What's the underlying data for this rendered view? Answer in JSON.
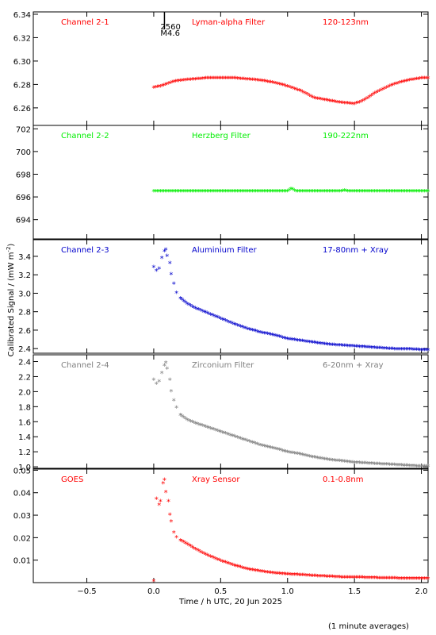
{
  "chart_data": {
    "type": "scatter",
    "ylabel_main": "Calibrated Signal / (mW m",
    "ylabel_sup": "-2",
    "ylabel_end": ")",
    "xlabel": "Time / h UTC, 20 Jun 2025",
    "footnote": "(1 minute averages)",
    "event_marker": {
      "x": 0.08,
      "label_top": "2560",
      "label_bottom": "M4.6"
    },
    "xlim": [
      -0.9,
      2.05
    ],
    "xticks": [
      -0.5,
      0.0,
      0.5,
      1.0,
      1.5,
      2.0
    ],
    "xticklabels": [
      "−0.5",
      "0.0",
      "0.5",
      "1.0",
      "1.5",
      "2.0"
    ],
    "panels": [
      {
        "channel": "Channel 2-1",
        "filter": "Lyman-alpha Filter",
        "band": "120-123nm",
        "color": "#ff0000",
        "ylim": [
          6.245,
          6.342
        ],
        "yticks": [
          6.26,
          6.28,
          6.3,
          6.32,
          6.34
        ],
        "yticklabels": [
          "6.26",
          "6.28",
          "6.30",
          "6.32",
          "6.34"
        ],
        "series": [
          [
            0.0,
            6.277
          ],
          [
            0.05,
            6.278
          ],
          [
            0.1,
            6.28
          ],
          [
            0.15,
            6.282
          ],
          [
            0.2,
            6.283
          ],
          [
            0.3,
            6.284
          ],
          [
            0.4,
            6.285
          ],
          [
            0.5,
            6.285
          ],
          [
            0.6,
            6.285
          ],
          [
            0.7,
            6.284
          ],
          [
            0.8,
            6.283
          ],
          [
            0.9,
            6.281
          ],
          [
            1.0,
            6.278
          ],
          [
            1.05,
            6.276
          ],
          [
            1.1,
            6.274
          ],
          [
            1.15,
            6.271
          ],
          [
            1.2,
            6.268
          ],
          [
            1.3,
            6.266
          ],
          [
            1.4,
            6.264
          ],
          [
            1.5,
            6.263
          ],
          [
            1.55,
            6.265
          ],
          [
            1.6,
            6.268
          ],
          [
            1.65,
            6.272
          ],
          [
            1.7,
            6.275
          ],
          [
            1.8,
            6.28
          ],
          [
            1.9,
            6.283
          ],
          [
            2.0,
            6.285
          ],
          [
            2.05,
            6.285
          ]
        ]
      },
      {
        "channel": "Channel 2-2",
        "filter": "Herzberg Filter",
        "band": "190-222nm",
        "color": "#00ee00",
        "ylim": [
          692.3,
          702.3
        ],
        "yticks": [
          694,
          696,
          698,
          700,
          702
        ],
        "yticklabels": [
          "694",
          "696",
          "698",
          "700",
          "702"
        ],
        "series": [
          [
            0.0,
            696.45
          ],
          [
            0.5,
            696.45
          ],
          [
            1.0,
            696.45
          ],
          [
            1.03,
            696.7
          ],
          [
            1.06,
            696.45
          ],
          [
            1.4,
            696.45
          ],
          [
            1.42,
            696.55
          ],
          [
            1.45,
            696.45
          ],
          [
            2.05,
            696.45
          ]
        ]
      },
      {
        "channel": "Channel 2-3",
        "filter": "Aluminium Filter",
        "band": "17-80nm + Xray",
        "color": "#0000cc",
        "ylim": [
          2.35,
          3.58
        ],
        "yticks": [
          2.4,
          2.6,
          2.8,
          3.0,
          3.2,
          3.4
        ],
        "yticklabels": [
          "2.4",
          "2.6",
          "2.8",
          "3.0",
          "3.2",
          "3.4"
        ],
        "series": [
          [
            0.0,
            3.28
          ],
          [
            0.02,
            3.24
          ],
          [
            0.04,
            3.26
          ],
          [
            0.06,
            3.38
          ],
          [
            0.08,
            3.45
          ],
          [
            0.09,
            3.47
          ],
          [
            0.1,
            3.4
          ],
          [
            0.12,
            3.32
          ],
          [
            0.13,
            3.2
          ],
          [
            0.15,
            3.1
          ],
          [
            0.17,
            3.0
          ],
          [
            0.2,
            2.94
          ],
          [
            0.25,
            2.88
          ],
          [
            0.3,
            2.84
          ],
          [
            0.4,
            2.78
          ],
          [
            0.5,
            2.72
          ],
          [
            0.6,
            2.66
          ],
          [
            0.7,
            2.61
          ],
          [
            0.8,
            2.57
          ],
          [
            0.9,
            2.54
          ],
          [
            1.0,
            2.5
          ],
          [
            1.1,
            2.48
          ],
          [
            1.2,
            2.46
          ],
          [
            1.3,
            2.44
          ],
          [
            1.4,
            2.43
          ],
          [
            1.5,
            2.42
          ],
          [
            1.6,
            2.41
          ],
          [
            1.7,
            2.4
          ],
          [
            1.8,
            2.39
          ],
          [
            1.9,
            2.39
          ],
          [
            2.0,
            2.38
          ],
          [
            2.05,
            2.38
          ]
        ]
      },
      {
        "channel": "Channel 2-4",
        "filter": "Zirconium Filter",
        "band": "6-20nm + Xray",
        "color": "#7f7f7f",
        "ylim": [
          0.98,
          2.49
        ],
        "yticks": [
          1.0,
          1.2,
          1.4,
          1.6,
          1.8,
          2.0,
          2.2,
          2.4
        ],
        "yticklabels": [
          "1.0",
          "1.2",
          "1.4",
          "1.6",
          "1.8",
          "2.0",
          "2.2",
          "2.4"
        ],
        "series": [
          [
            0.0,
            2.15
          ],
          [
            0.02,
            2.1
          ],
          [
            0.04,
            2.13
          ],
          [
            0.06,
            2.24
          ],
          [
            0.08,
            2.34
          ],
          [
            0.09,
            2.38
          ],
          [
            0.1,
            2.3
          ],
          [
            0.12,
            2.15
          ],
          [
            0.13,
            2.0
          ],
          [
            0.15,
            1.88
          ],
          [
            0.17,
            1.78
          ],
          [
            0.2,
            1.68
          ],
          [
            0.25,
            1.62
          ],
          [
            0.3,
            1.58
          ],
          [
            0.4,
            1.52
          ],
          [
            0.5,
            1.46
          ],
          [
            0.6,
            1.4
          ],
          [
            0.7,
            1.34
          ],
          [
            0.8,
            1.28
          ],
          [
            0.9,
            1.24
          ],
          [
            1.0,
            1.19
          ],
          [
            1.1,
            1.16
          ],
          [
            1.2,
            1.12
          ],
          [
            1.3,
            1.09
          ],
          [
            1.4,
            1.07
          ],
          [
            1.5,
            1.05
          ],
          [
            1.6,
            1.04
          ],
          [
            1.7,
            1.03
          ],
          [
            1.8,
            1.02
          ],
          [
            1.9,
            1.01
          ],
          [
            2.0,
            1.0
          ],
          [
            2.05,
            1.0
          ]
        ]
      },
      {
        "channel": "GOES",
        "filter": "Xray Sensor",
        "band": "0.1-0.8nm",
        "color": "#ff0000",
        "ylim": [
          0.0,
          0.0505
        ],
        "yticks": [
          0.01,
          0.02,
          0.03,
          0.04,
          0.05
        ],
        "yticklabels": [
          "0.01",
          "0.02",
          "0.03",
          "0.04",
          "0.05"
        ],
        "series": [
          [
            0.02,
            0.037
          ],
          [
            0.04,
            0.0345
          ],
          [
            0.05,
            0.036
          ],
          [
            0.07,
            0.044
          ],
          [
            0.08,
            0.0455
          ],
          [
            0.09,
            0.04
          ],
          [
            0.11,
            0.036
          ],
          [
            0.12,
            0.03
          ],
          [
            0.13,
            0.027
          ],
          [
            0.15,
            0.022
          ],
          [
            0.17,
            0.02
          ],
          [
            0.2,
            0.0185
          ],
          [
            0.25,
            0.017
          ],
          [
            0.3,
            0.015
          ],
          [
            0.4,
            0.012
          ],
          [
            0.5,
            0.0095
          ],
          [
            0.6,
            0.0075
          ],
          [
            0.7,
            0.0058
          ],
          [
            0.8,
            0.0048
          ],
          [
            0.9,
            0.004
          ],
          [
            1.0,
            0.0035
          ],
          [
            1.1,
            0.0032
          ],
          [
            1.2,
            0.0028
          ],
          [
            1.3,
            0.0025
          ],
          [
            1.4,
            0.0022
          ],
          [
            1.5,
            0.0021
          ],
          [
            1.6,
            0.002
          ],
          [
            1.7,
            0.0018
          ],
          [
            1.8,
            0.0017
          ],
          [
            1.9,
            0.0016
          ],
          [
            2.0,
            0.0016
          ],
          [
            2.05,
            0.0016
          ]
        ],
        "extra_points": [
          [
            0.0,
            0.0005
          ]
        ]
      }
    ]
  }
}
